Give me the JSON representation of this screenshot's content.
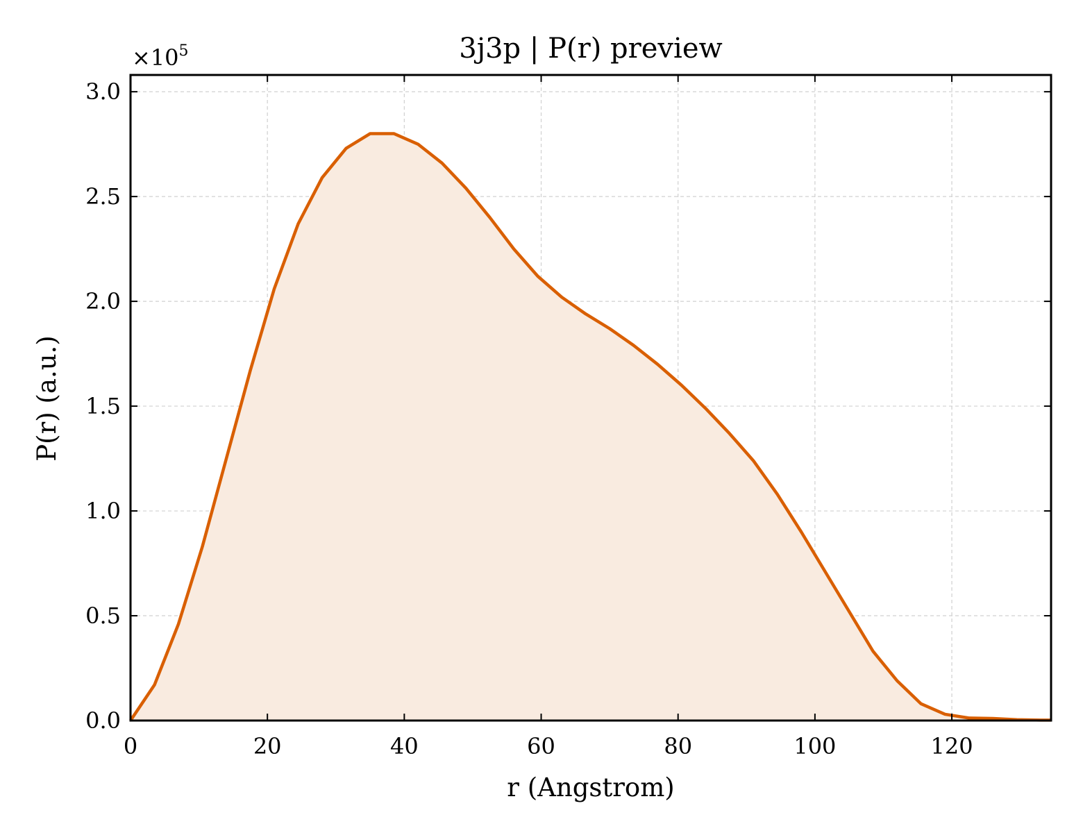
{
  "chart_data": {
    "type": "area",
    "title": "3j3p | P(r) preview",
    "xlabel": "r (Angstrom)",
    "ylabel": "P(r) (a.u.)",
    "y_multiplier_label": "×10",
    "y_multiplier_exponent": "5",
    "xlim": [
      0,
      134.5
    ],
    "ylim": [
      0,
      3.08
    ],
    "x_ticks": [
      0,
      20,
      40,
      60,
      80,
      100,
      120
    ],
    "x_tick_labels": [
      "0",
      "20",
      "40",
      "60",
      "80",
      "100",
      "120"
    ],
    "y_ticks": [
      0.0,
      0.5,
      1.0,
      1.5,
      2.0,
      2.5,
      3.0
    ],
    "y_tick_labels": [
      "0.0",
      "0.5",
      "1.0",
      "1.5",
      "2.0",
      "2.5",
      "3.0"
    ],
    "grid": true,
    "colors": {
      "line": "#d95f02",
      "fill": "#f9ebe0",
      "grid": "#d0d0d0",
      "frame": "#000000"
    },
    "series": [
      {
        "x": [
          0,
          3.5,
          7,
          10.5,
          14,
          17.5,
          21,
          24.5,
          28,
          31.5,
          35,
          38.5,
          42,
          45.5,
          49,
          52.5,
          56,
          59.5,
          63,
          66.5,
          70,
          73.5,
          77,
          80.5,
          84,
          87.5,
          91,
          94.5,
          98,
          101.5,
          105,
          108.5,
          112,
          115.5,
          119,
          122.5,
          126,
          129.5,
          133
        ],
        "y": [
          0.0,
          0.17,
          0.46,
          0.83,
          1.25,
          1.67,
          2.06,
          2.37,
          2.59,
          2.73,
          2.8,
          2.8,
          2.75,
          2.66,
          2.54,
          2.4,
          2.25,
          2.12,
          2.02,
          1.94,
          1.87,
          1.79,
          1.7,
          1.6,
          1.49,
          1.37,
          1.24,
          1.08,
          0.9,
          0.71,
          0.52,
          0.33,
          0.19,
          0.08,
          0.03,
          0.012,
          0.01,
          0.004,
          0.002
        ]
      }
    ]
  }
}
